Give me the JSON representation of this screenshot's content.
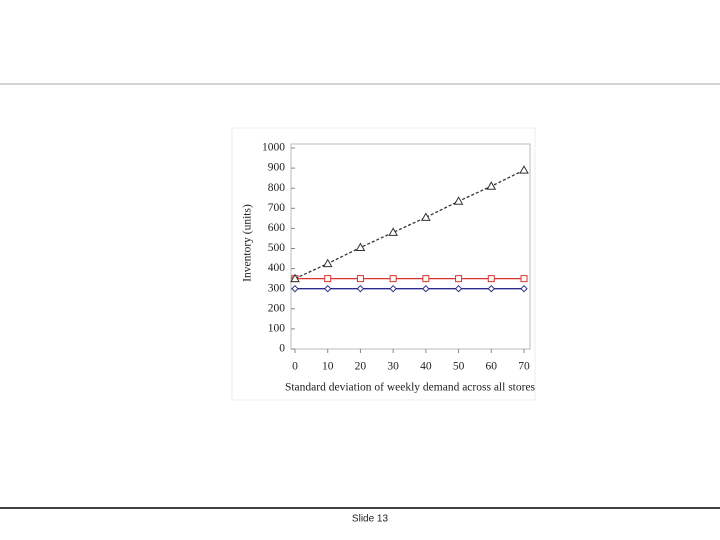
{
  "chart_data": {
    "type": "line",
    "x_label": "Standard deviation of weekly demand across all stores",
    "y_label": "Inventory (units)",
    "x": [
      0,
      10,
      20,
      30,
      40,
      50,
      60,
      70
    ],
    "series": [
      {
        "color": "#2b2b8c",
        "marker": "diamond",
        "values": [
          300,
          300,
          300,
          300,
          300,
          300,
          300,
          300
        ]
      },
      {
        "color": "#d9342b",
        "marker": "square",
        "values": [
          350,
          350,
          350,
          350,
          350,
          350,
          350,
          350
        ]
      },
      {
        "color": "#333333",
        "marker": "triangle",
        "dashed": true,
        "values": [
          350,
          425,
          505,
          580,
          655,
          735,
          810,
          890
        ]
      }
    ],
    "xlim": [
      0,
      70
    ],
    "xticks": [
      0,
      10,
      20,
      30,
      40,
      50,
      60,
      70
    ],
    "ylim": [
      0,
      1000
    ],
    "yticks": [
      0,
      100,
      200,
      300,
      400,
      500,
      600,
      700,
      800,
      900,
      1000
    ],
    "grid": false
  },
  "footer": "Slide 13"
}
